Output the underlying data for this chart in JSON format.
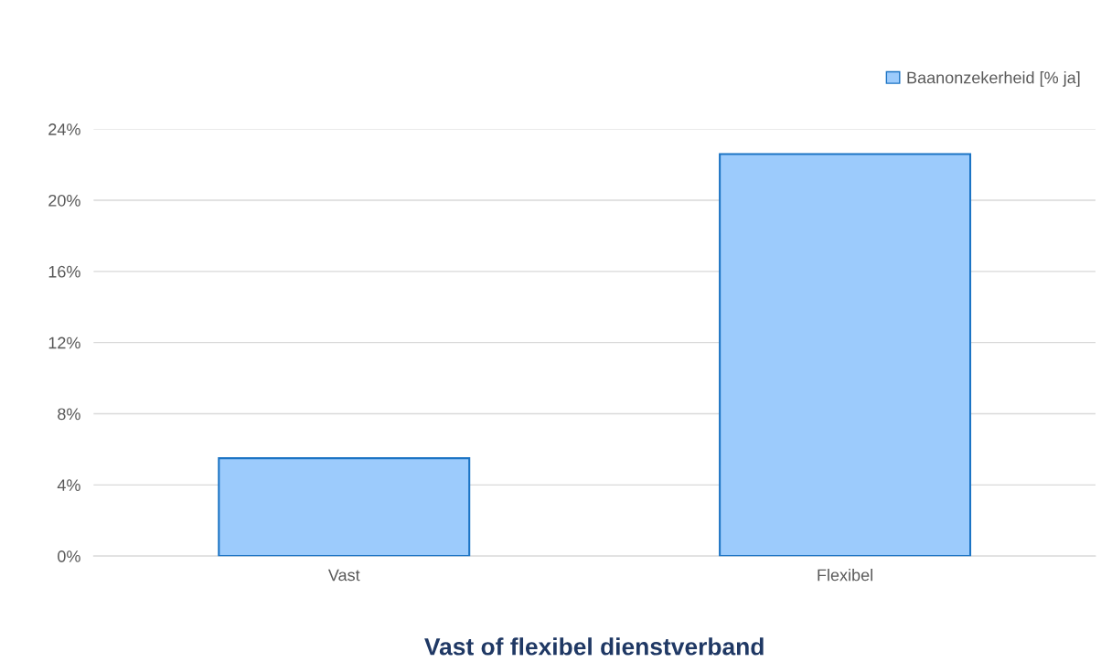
{
  "chart_data": {
    "type": "bar",
    "xlabel": "Vast of flexibel dienstverband",
    "categories": [
      "Vast",
      "Flexibel"
    ],
    "series": [
      {
        "name": "Baanonzekerheid [% ja]",
        "color": "#9ccbfc",
        "values": [
          5.5,
          22.6
        ]
      }
    ],
    "ylim": [
      0,
      24
    ],
    "yticks": [
      {
        "value": 0,
        "label": "0%"
      },
      {
        "value": 4,
        "label": "4%"
      },
      {
        "value": 8,
        "label": "8%"
      },
      {
        "value": 12,
        "label": "12%"
      },
      {
        "value": 16,
        "label": "16%"
      },
      {
        "value": 20,
        "label": "20%"
      },
      {
        "value": 24,
        "label": "24%"
      }
    ],
    "grid": "y",
    "legend": "top right"
  }
}
